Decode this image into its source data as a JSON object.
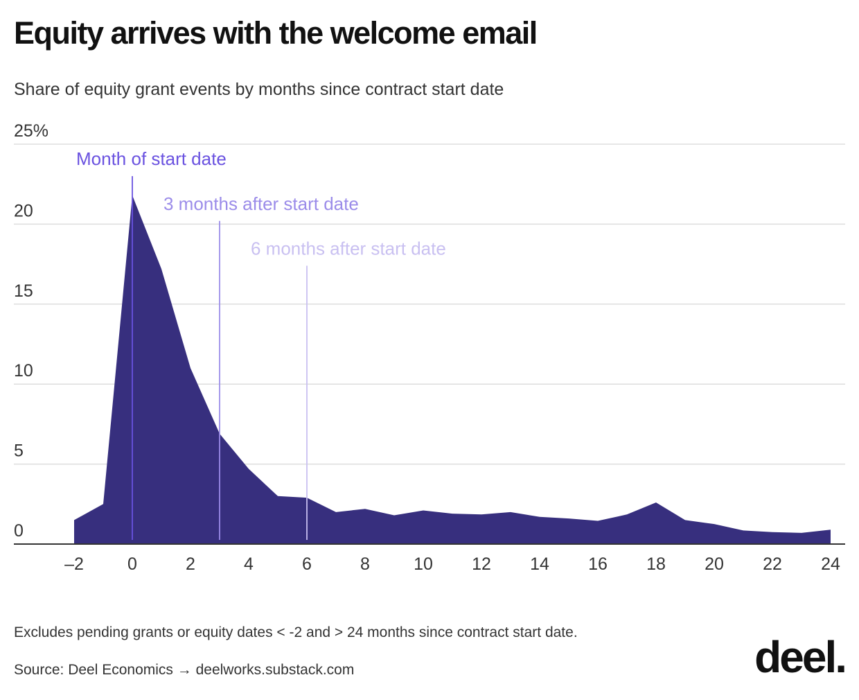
{
  "title": "Equity arrives with the welcome email",
  "subtitle": "Share of equity grant events by months since contract start date",
  "note": "Excludes pending grants or equity dates < -2 and > 24 months since contract start date.",
  "source": "Source: Deel Economics → deelworks.substack.com",
  "logo_text": "deel.",
  "colors": {
    "area": "#372f7e",
    "grid": "#dddddd",
    "axis": "#333333",
    "annotation_0": "#6a52e0",
    "annotation_3": "#9b8ce9",
    "annotation_6": "#c9c0f1"
  },
  "chart_data": {
    "type": "area",
    "title": "Equity arrives with the welcome email",
    "subtitle": "Share of equity grant events by months since contract start date",
    "xlabel": "",
    "ylabel": "",
    "xlim": [
      -2,
      24
    ],
    "ylim": [
      0,
      25
    ],
    "grid": true,
    "x": [
      -2,
      -1,
      0,
      1,
      2,
      3,
      4,
      5,
      6,
      7,
      8,
      9,
      10,
      11,
      12,
      13,
      14,
      15,
      16,
      17,
      18,
      19,
      20,
      21,
      22,
      23,
      24
    ],
    "series": [
      {
        "values": [
          1.5,
          2.5,
          21.8,
          17.2,
          11.0,
          6.9,
          4.7,
          3.0,
          2.9,
          2.0,
          2.2,
          1.8,
          2.1,
          1.9,
          1.85,
          2.0,
          1.7,
          1.6,
          1.45,
          1.85,
          2.6,
          1.5,
          1.25,
          0.85,
          0.75,
          0.7,
          0.9
        ]
      }
    ],
    "y_ticks": [
      {
        "value": 0,
        "label": "0"
      },
      {
        "value": 5,
        "label": "5"
      },
      {
        "value": 10,
        "label": "10"
      },
      {
        "value": 15,
        "label": "15"
      },
      {
        "value": 20,
        "label": "20"
      },
      {
        "value": 25,
        "label": "25%"
      }
    ],
    "x_ticks": [
      {
        "value": -2,
        "label": "–2"
      },
      {
        "value": 0,
        "label": "0"
      },
      {
        "value": 2,
        "label": "2"
      },
      {
        "value": 4,
        "label": "4"
      },
      {
        "value": 6,
        "label": "6"
      },
      {
        "value": 8,
        "label": "8"
      },
      {
        "value": 10,
        "label": "10"
      },
      {
        "value": 12,
        "label": "12"
      },
      {
        "value": 14,
        "label": "14"
      },
      {
        "value": 16,
        "label": "16"
      },
      {
        "value": 18,
        "label": "18"
      },
      {
        "value": 20,
        "label": "20"
      },
      {
        "value": 22,
        "label": "22"
      },
      {
        "value": 24,
        "label": "24"
      }
    ],
    "annotations": [
      {
        "x": 0,
        "y_top": 23.0,
        "label": "Month of start date",
        "color": "#6a52e0"
      },
      {
        "x": 3,
        "y_top": 20.2,
        "label": "3 months after start date",
        "color": "#9b8ce9"
      },
      {
        "x": 6,
        "y_top": 17.4,
        "label": "6 months after start date",
        "color": "#c9c0f1"
      }
    ]
  }
}
